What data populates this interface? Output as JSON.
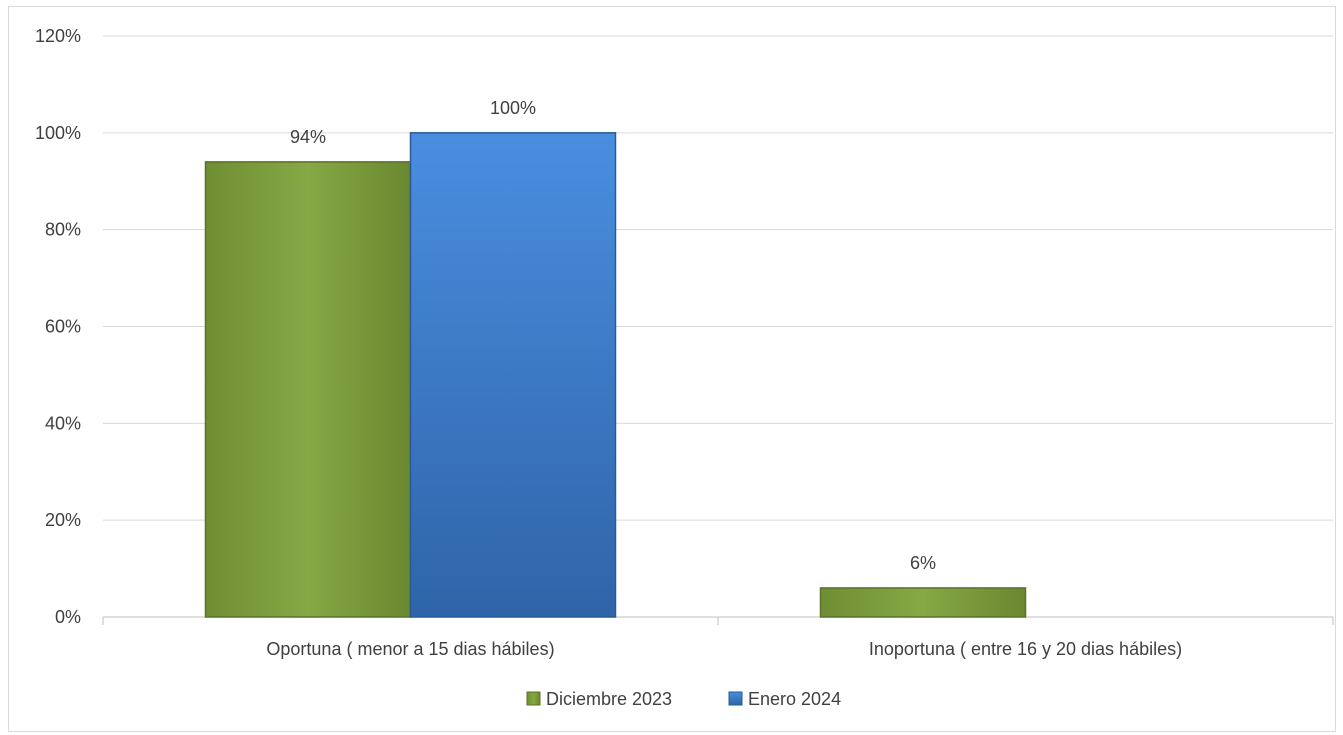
{
  "chart_data": {
    "type": "bar",
    "categories": [
      "Oportuna ( menor a 15 dias hábiles)",
      "Inoportuna ( entre 16 y 20 dias hábiles)"
    ],
    "series": [
      {
        "name": "Diciembre 2023",
        "values": [
          0.94,
          0.06
        ],
        "labels": [
          "94%",
          "6%"
        ],
        "color": "#7a9a3c"
      },
      {
        "name": "Enero 2024",
        "values": [
          1.0,
          null
        ],
        "labels": [
          "100%",
          ""
        ],
        "color": "#3f7fcf"
      }
    ],
    "yticks": [
      "0%",
      "20%",
      "40%",
      "60%",
      "80%",
      "100%",
      "120%"
    ],
    "ylim": [
      0,
      1.2
    ],
    "grid": true,
    "legend_position": "bottom"
  }
}
